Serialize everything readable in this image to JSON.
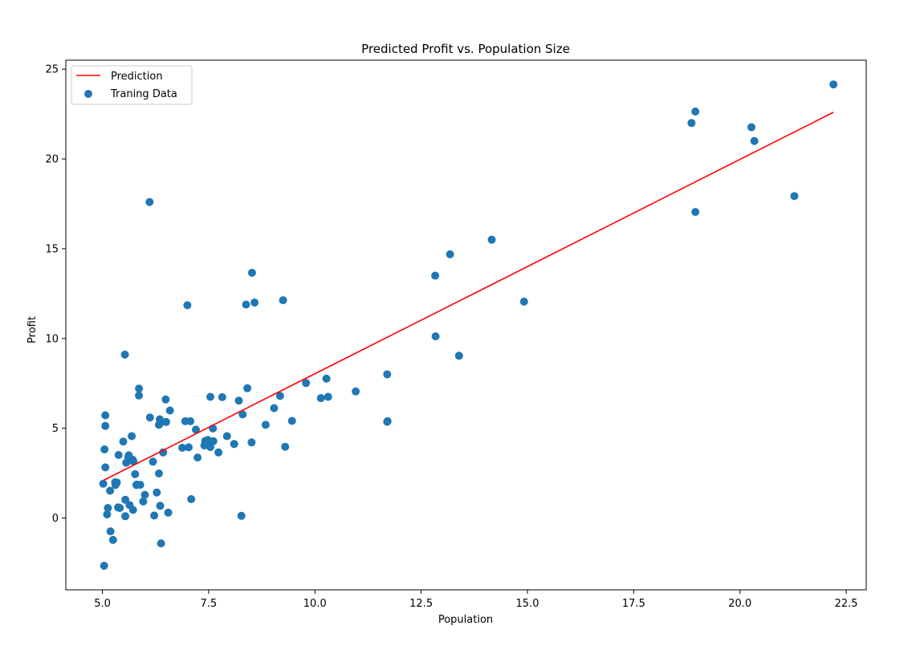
{
  "chart_data": {
    "type": "scatter",
    "title": "Predicted Profit vs. Population Size",
    "xlabel": "Population",
    "ylabel": "Profit",
    "xlim": [
      4.14,
      22.97
    ],
    "ylim": [
      -4.0,
      25.5
    ],
    "xticks": [
      5.0,
      7.5,
      10.0,
      12.5,
      15.0,
      17.5,
      20.0,
      22.5
    ],
    "xtick_labels": [
      "5.0",
      "7.5",
      "10.0",
      "12.5",
      "15.0",
      "17.5",
      "20.0",
      "22.5"
    ],
    "yticks": [
      0,
      5,
      10,
      15,
      20,
      25
    ],
    "ytick_labels": [
      "0",
      "5",
      "10",
      "15",
      "20",
      "25"
    ],
    "grid": false,
    "legend_position": "top-left",
    "colors": {
      "prediction": "#ff0000",
      "training": "#1f77b4"
    },
    "series": [
      {
        "name": "Prediction",
        "kind": "line",
        "x": [
          5.03,
          22.2
        ],
        "y": [
          2.1,
          22.6
        ]
      },
      {
        "name": "Traning Data",
        "kind": "scatter",
        "points": [
          [
            6.11,
            17.6
          ],
          [
            5.53,
            9.1
          ],
          [
            8.52,
            13.66
          ],
          [
            7.0,
            11.85
          ],
          [
            5.86,
            6.82
          ],
          [
            8.38,
            11.89
          ],
          [
            7.48,
            4.35
          ],
          [
            8.58,
            12.0
          ],
          [
            6.49,
            6.6
          ],
          [
            5.05,
            3.82
          ],
          [
            5.71,
            3.25
          ],
          [
            14.16,
            15.5
          ],
          [
            5.73,
            3.16
          ],
          [
            8.41,
            7.23
          ],
          [
            5.64,
            0.72
          ],
          [
            5.38,
            3.51
          ],
          [
            6.37,
            5.3
          ],
          [
            5.13,
            0.56
          ],
          [
            6.43,
            3.65
          ],
          [
            7.07,
            5.39
          ],
          [
            6.19,
            3.14
          ],
          [
            20.27,
            21.77
          ],
          [
            5.49,
            4.26
          ],
          [
            6.33,
            5.19
          ],
          [
            5.56,
            3.08
          ],
          [
            18.95,
            22.64
          ],
          [
            12.83,
            13.5
          ],
          [
            10.96,
            7.05
          ],
          [
            13.18,
            14.69
          ],
          [
            22.2,
            24.15
          ],
          [
            5.25,
            -1.22
          ],
          [
            6.59,
            5.99
          ],
          [
            9.25,
            12.13
          ],
          [
            5.89,
            1.85
          ],
          [
            8.21,
            6.54
          ],
          [
            7.93,
            4.56
          ],
          [
            8.1,
            4.12
          ],
          [
            5.61,
            3.39
          ],
          [
            12.84,
            10.12
          ],
          [
            6.35,
            5.5
          ],
          [
            5.41,
            0.56
          ],
          [
            6.88,
            3.91
          ],
          [
            11.71,
            5.39
          ],
          [
            5.77,
            2.44
          ],
          [
            7.82,
            6.73
          ],
          [
            7.09,
            1.05
          ],
          [
            5.07,
            5.13
          ],
          [
            5.8,
            1.84
          ],
          [
            11.7,
            8.0
          ],
          [
            5.54,
            1.02
          ],
          [
            7.54,
            6.75
          ],
          [
            5.31,
            1.84
          ],
          [
            7.42,
            4.29
          ],
          [
            7.6,
            4.99
          ],
          [
            6.28,
            1.42
          ],
          [
            6.33,
            2.48
          ],
          [
            6.36,
            0.68
          ],
          [
            5.11,
            0.2
          ],
          [
            5.81,
            1.86
          ],
          [
            6.5,
            5.35
          ],
          [
            6.95,
            5.39
          ],
          [
            5.18,
            1.52
          ],
          [
            9.79,
            7.52
          ],
          [
            18.86,
            22.0
          ],
          [
            9.18,
            6.8
          ],
          [
            7.03,
            3.94
          ],
          [
            5.69,
            4.56
          ],
          [
            5.07,
            5.72
          ],
          [
            5.62,
            3.49
          ],
          [
            5.04,
            -2.66
          ],
          [
            7.24,
            3.37
          ],
          [
            5.81,
            1.84
          ],
          [
            11.7,
            5.36
          ],
          [
            6.0,
            1.29
          ],
          [
            5.86,
            7.21
          ],
          [
            5.62,
            3.2
          ],
          [
            5.34,
            1.98
          ],
          [
            5.02,
            1.91
          ],
          [
            8.84,
            5.19
          ],
          [
            7.61,
            4.28
          ],
          [
            5.3,
            1.99
          ],
          [
            8.3,
            5.77
          ],
          [
            9.46,
            5.41
          ],
          [
            5.37,
            0.59
          ],
          [
            10.14,
            6.68
          ],
          [
            10.27,
            7.76
          ],
          [
            20.34,
            21.0
          ],
          [
            13.39,
            9.04
          ],
          [
            18.95,
            17.05
          ],
          [
            21.28,
            17.93
          ],
          [
            7.73,
            3.65
          ],
          [
            8.27,
            0.12
          ],
          [
            5.54,
            0.1
          ],
          [
            6.22,
            0.14
          ],
          [
            9.3,
            3.97
          ],
          [
            5.19,
            -0.74
          ],
          [
            5.72,
            0.45
          ],
          [
            6.38,
            -1.41
          ],
          [
            6.55,
            0.3
          ],
          [
            14.92,
            12.05
          ],
          [
            7.2,
            4.92
          ],
          [
            7.4,
            4.04
          ],
          [
            8.51,
            4.21
          ],
          [
            7.54,
            3.95
          ],
          [
            9.04,
            6.12
          ],
          [
            6.12,
            5.6
          ],
          [
            10.31,
            6.75
          ],
          [
            5.96,
            0.92
          ],
          [
            5.07,
            2.82
          ]
        ]
      }
    ]
  }
}
